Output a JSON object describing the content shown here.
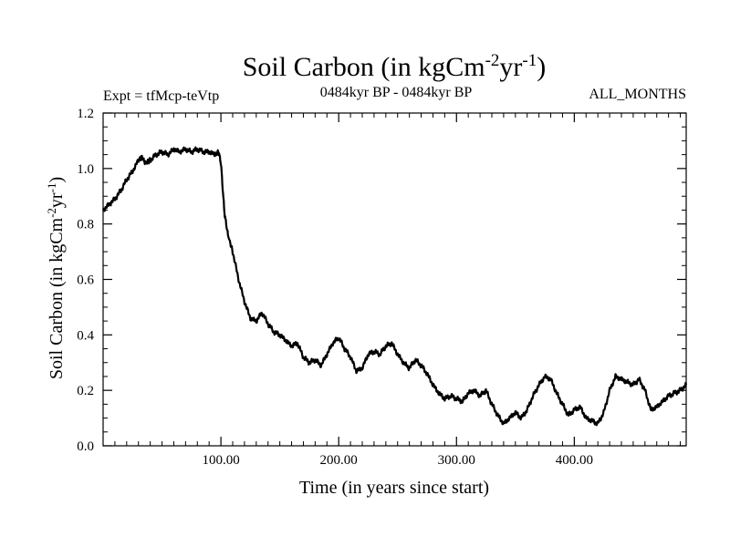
{
  "chart_data": {
    "type": "line",
    "title": "Soil Carbon (in kgCm-2yr-1)",
    "title_parts": {
      "base": "Soil Carbon (in kgCm",
      "exp1": "-2",
      "mid": "yr",
      "exp2": "-1",
      "end": ")"
    },
    "subtitle_left": "Expt = tfMcp-teVtp",
    "subtitle_center": "0484kyr BP - 0484kyr BP",
    "subtitle_right": "ALL_MONTHS",
    "xlabel": "Time (in years since start)",
    "ylabel": "Soil Carbon (in kgCm-2yr-1)",
    "ylabel_parts": {
      "base": "Soil Carbon (in kgCm",
      "exp1": "-2",
      "mid": "yr",
      "exp2": "-1",
      "end": ")"
    },
    "xlim": [
      0,
      495
    ],
    "ylim": [
      0.0,
      1.2
    ],
    "xticks": [
      100,
      200,
      300,
      400
    ],
    "xtick_labels": [
      "100.00",
      "200.00",
      "300.00",
      "400.00"
    ],
    "yticks": [
      0.0,
      0.2,
      0.4,
      0.6,
      0.8,
      1.0,
      1.2
    ],
    "ytick_labels": [
      "0.0",
      "0.2",
      "0.4",
      "0.6",
      "0.8",
      "1.0",
      "1.2"
    ],
    "series": [
      {
        "name": "Soil Carbon",
        "x": [
          0,
          5,
          10,
          15,
          20,
          25,
          30,
          33,
          36,
          40,
          45,
          50,
          55,
          60,
          65,
          70,
          75,
          80,
          85,
          90,
          95,
          98,
          100,
          103,
          106,
          110,
          115,
          120,
          125,
          130,
          135,
          140,
          145,
          150,
          155,
          160,
          165,
          170,
          175,
          180,
          185,
          190,
          195,
          200,
          205,
          210,
          215,
          220,
          225,
          230,
          235,
          240,
          245,
          250,
          255,
          260,
          265,
          270,
          275,
          280,
          285,
          290,
          295,
          300,
          305,
          310,
          315,
          320,
          325,
          330,
          335,
          340,
          345,
          350,
          355,
          360,
          365,
          370,
          375,
          380,
          385,
          390,
          395,
          400,
          405,
          410,
          415,
          420,
          425,
          430,
          435,
          440,
          445,
          450,
          455,
          460,
          465,
          470,
          475,
          480,
          485,
          490,
          495
        ],
        "y": [
          0.85,
          0.87,
          0.89,
          0.92,
          0.96,
          0.99,
          1.03,
          1.04,
          1.02,
          1.03,
          1.05,
          1.06,
          1.05,
          1.07,
          1.06,
          1.07,
          1.06,
          1.07,
          1.06,
          1.06,
          1.05,
          1.06,
          1.02,
          0.84,
          0.76,
          0.7,
          0.6,
          0.52,
          0.46,
          0.45,
          0.48,
          0.44,
          0.41,
          0.4,
          0.38,
          0.36,
          0.37,
          0.32,
          0.3,
          0.31,
          0.29,
          0.33,
          0.37,
          0.39,
          0.35,
          0.32,
          0.27,
          0.28,
          0.33,
          0.34,
          0.33,
          0.36,
          0.37,
          0.33,
          0.3,
          0.28,
          0.31,
          0.29,
          0.26,
          0.22,
          0.19,
          0.17,
          0.18,
          0.17,
          0.16,
          0.19,
          0.2,
          0.18,
          0.2,
          0.15,
          0.11,
          0.08,
          0.1,
          0.12,
          0.1,
          0.13,
          0.18,
          0.22,
          0.25,
          0.24,
          0.19,
          0.15,
          0.11,
          0.13,
          0.14,
          0.1,
          0.09,
          0.08,
          0.12,
          0.2,
          0.25,
          0.24,
          0.23,
          0.22,
          0.24,
          0.2,
          0.13,
          0.14,
          0.16,
          0.18,
          0.19,
          0.2,
          0.22
        ]
      }
    ]
  }
}
